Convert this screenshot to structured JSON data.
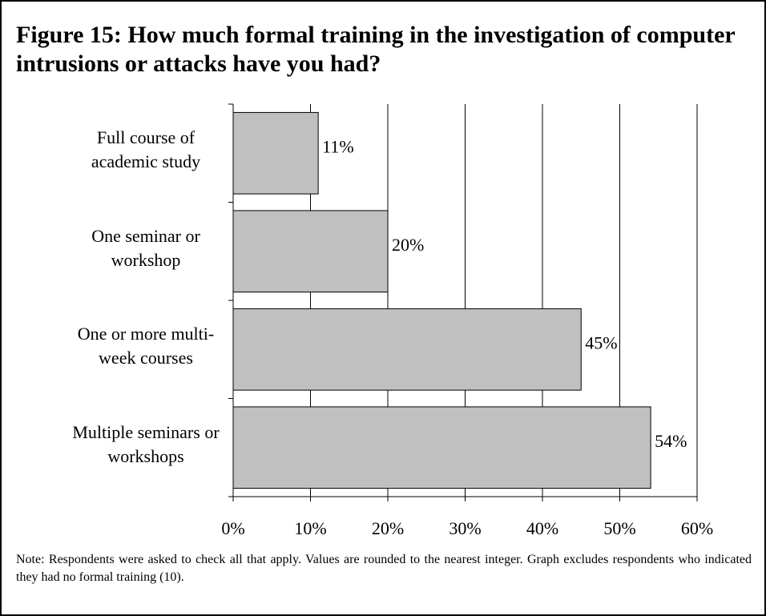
{
  "chart_data": {
    "type": "bar",
    "orientation": "horizontal",
    "title": "Figure 15: How much formal training in the investigation of computer intrusions or attacks have you had?",
    "categories": [
      "Full course of academic study",
      "One seminar or workshop",
      "One or more multi-week courses",
      "Multiple seminars or workshops"
    ],
    "values": [
      11,
      20,
      45,
      54
    ],
    "value_labels": [
      "11%",
      "20%",
      "45%",
      "54%"
    ],
    "color": "#c0c0c0",
    "xlim": [
      0,
      60
    ],
    "xticks": [
      {
        "value": 0,
        "label": "0%"
      },
      {
        "value": 10,
        "label": "10%"
      },
      {
        "value": 20,
        "label": "20%"
      },
      {
        "value": 30,
        "label": "30%"
      },
      {
        "value": 40,
        "label": "40%"
      },
      {
        "value": 50,
        "label": "50%"
      },
      {
        "value": 60,
        "label": "60%"
      }
    ],
    "grid": true,
    "note": "Note: Respondents were asked to check all that apply. Values are rounded to the nearest integer. Graph excludes respondents who indicated they had no formal training (10)."
  }
}
